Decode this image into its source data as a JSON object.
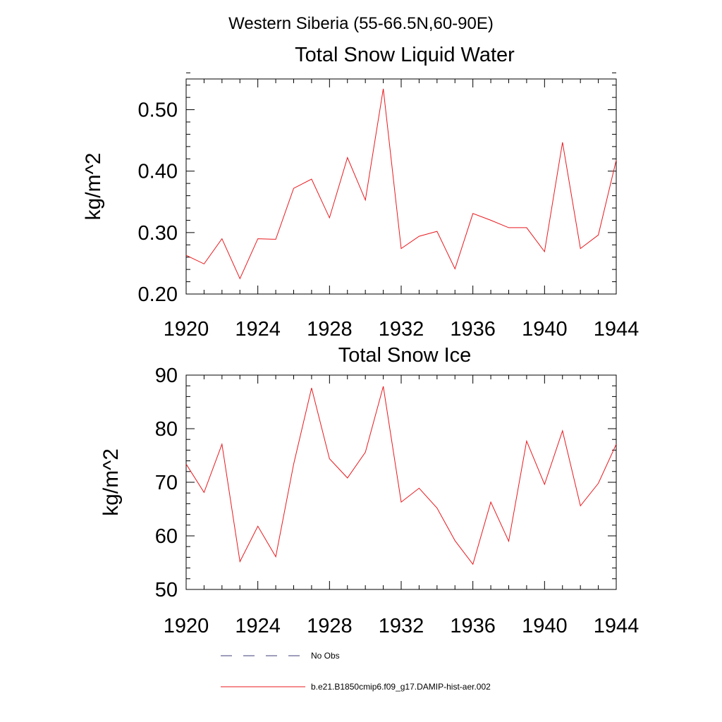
{
  "figure": {
    "suptitle": "Western Siberia (55-66.5N,60-90E)"
  },
  "legend": {
    "items": [
      {
        "label": "No Obs",
        "color": "#3c3c78",
        "dash": true
      },
      {
        "label": "b.e21.B1850cmip6.f09_g17.DAMIP-hist-aer.002",
        "color": "#e8191e",
        "dash": false
      }
    ]
  },
  "chart_data": [
    {
      "type": "line",
      "title": "Total Snow Liquid Water",
      "xlabel": "",
      "ylabel": "kg/m^2",
      "xlim": [
        1920,
        1944
      ],
      "ylim": [
        0.2,
        0.55
      ],
      "xticks": [
        1920,
        1924,
        1928,
        1932,
        1936,
        1940,
        1944
      ],
      "xtick_labels": [
        "1920",
        "1924",
        "1928",
        "1932",
        "1936",
        "1940",
        "1944"
      ],
      "yticks": [
        0.2,
        0.3,
        0.4,
        0.5
      ],
      "ytick_labels": [
        "0.20",
        "0.30",
        "0.40",
        "0.50"
      ],
      "x_minor_step": 1,
      "y_minor_step": 0.02,
      "series": [
        {
          "color": "#e8191e",
          "x": [
            1920,
            1921,
            1922,
            1923,
            1924,
            1925,
            1926,
            1927,
            1928,
            1929,
            1930,
            1931,
            1932,
            1933,
            1934,
            1935,
            1936,
            1937,
            1938,
            1939,
            1940,
            1941,
            1942,
            1943,
            1944
          ],
          "y": [
            0.263,
            0.249,
            0.29,
            0.225,
            0.29,
            0.289,
            0.372,
            0.387,
            0.324,
            0.422,
            0.353,
            0.534,
            0.274,
            0.294,
            0.302,
            0.241,
            0.331,
            0.32,
            0.308,
            0.308,
            0.269,
            0.447,
            0.274,
            0.296,
            0.418
          ]
        }
      ]
    },
    {
      "type": "line",
      "title": "Total Snow Ice",
      "xlabel": "",
      "ylabel": "kg/m^2",
      "xlim": [
        1920,
        1944
      ],
      "ylim": [
        50,
        90
      ],
      "xticks": [
        1920,
        1924,
        1928,
        1932,
        1936,
        1940,
        1944
      ],
      "xtick_labels": [
        "1920",
        "1924",
        "1928",
        "1932",
        "1936",
        "1940",
        "1944"
      ],
      "yticks": [
        50,
        60,
        70,
        80,
        90
      ],
      "ytick_labels": [
        "50",
        "60",
        "70",
        "80",
        "90"
      ],
      "x_minor_step": 1,
      "y_minor_step": 2,
      "series": [
        {
          "color": "#e8191e",
          "x": [
            1920,
            1921,
            1922,
            1923,
            1924,
            1925,
            1926,
            1927,
            1928,
            1929,
            1930,
            1931,
            1932,
            1933,
            1934,
            1935,
            1936,
            1937,
            1938,
            1939,
            1940,
            1941,
            1942,
            1943,
            1944
          ],
          "y": [
            73.4,
            68.1,
            77.1,
            55.2,
            61.8,
            56.1,
            73.4,
            87.6,
            74.4,
            70.8,
            75.6,
            87.9,
            66.3,
            68.9,
            65.2,
            59.1,
            54.7,
            66.3,
            59.0,
            77.7,
            69.6,
            79.6,
            65.6,
            69.8,
            77.1
          ]
        }
      ]
    }
  ]
}
